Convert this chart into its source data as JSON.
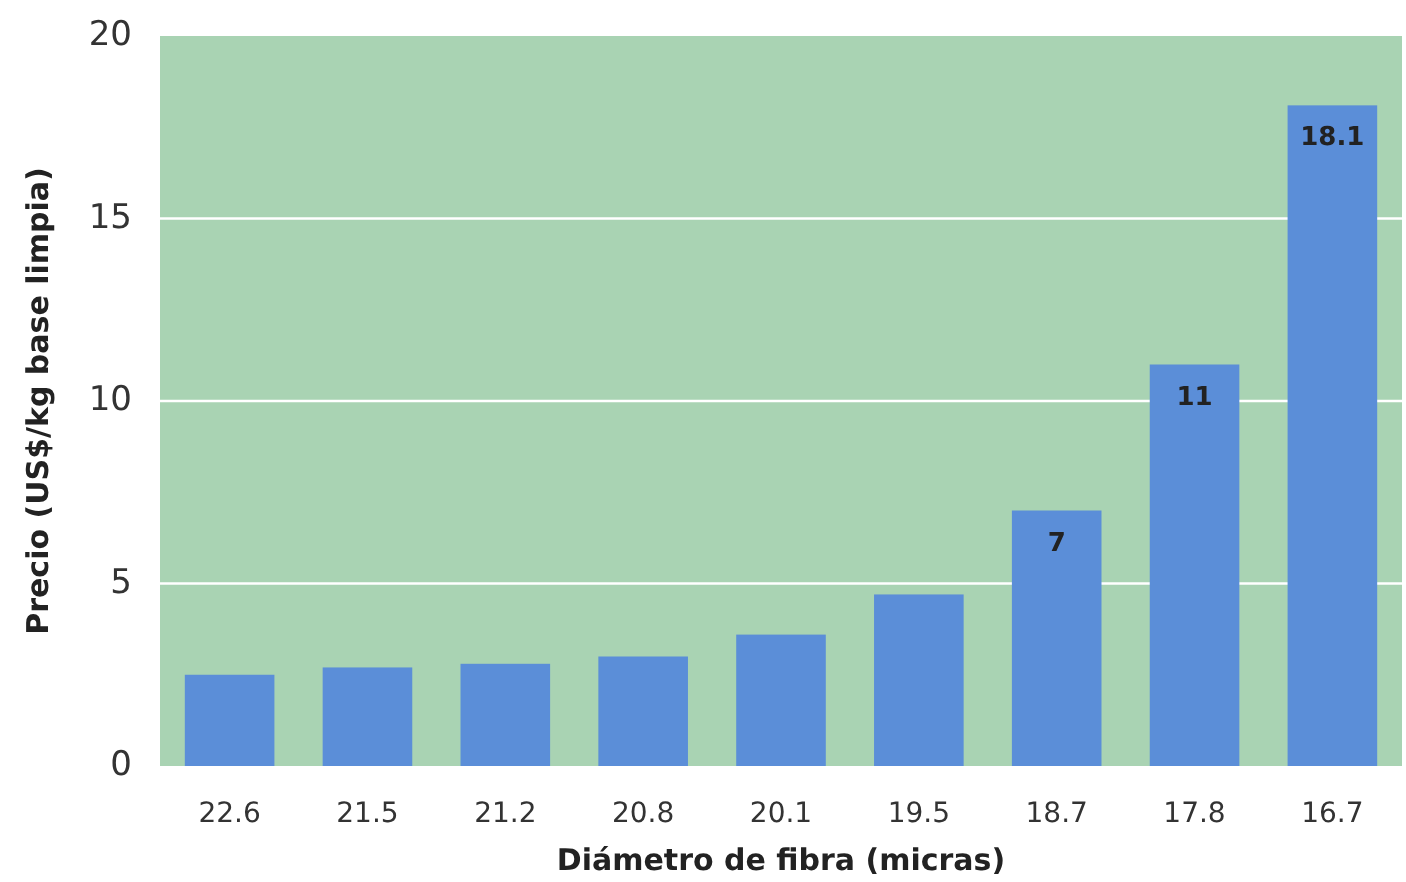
{
  "chart_data": {
    "type": "bar",
    "xlabel": "Diámetro de fibra (micras)",
    "ylabel": "Precio (US$/kg base limpia)",
    "categories": [
      "22.6",
      "21.5",
      "21.2",
      "20.8",
      "20.1",
      "19.5",
      "18.7",
      "17.8",
      "16.7"
    ],
    "values": [
      2.5,
      2.7,
      2.8,
      3.0,
      3.6,
      4.7,
      7,
      11,
      18.1
    ],
    "value_labels": [
      null,
      null,
      null,
      null,
      null,
      null,
      "7",
      "11",
      "18.1"
    ],
    "color": "#5b8ed8",
    "ylim": [
      0,
      20
    ],
    "yticks": [
      0,
      5,
      10,
      15,
      20
    ],
    "grid": "y"
  }
}
